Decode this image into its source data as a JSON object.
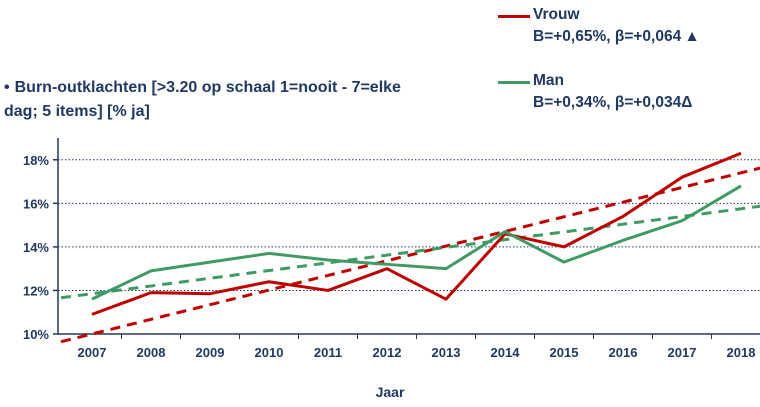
{
  "chart_data": {
    "type": "line",
    "title": "Burn-outklachten [>3.20 op schaal 1=nooit - 7=elke dag; 5 items] [% ja]",
    "title_bullet": "•",
    "xlabel": "Jaar",
    "ylabel": "",
    "categories": [
      "2007",
      "2008",
      "2009",
      "2010",
      "2011",
      "2012",
      "2013",
      "2014",
      "2015",
      "2016",
      "2017",
      "2018"
    ],
    "ylim": [
      10,
      19
    ],
    "yticks": [
      10,
      12,
      14,
      16,
      18
    ],
    "ytick_labels": [
      "10%",
      "12%",
      "14%",
      "16%",
      "18%"
    ],
    "grid": "horizontal-dotted",
    "legend_position": "top-right",
    "series": [
      {
        "name": "Vrouw",
        "stats": "B=+0,65%, β=+0,064",
        "significance_marker": "▲",
        "color": "#c00000",
        "values": [
          10.9,
          11.9,
          11.85,
          12.4,
          12.0,
          13.0,
          11.6,
          14.6,
          14.0,
          15.4,
          17.2,
          18.3
        ],
        "trend": {
          "start": 10.0,
          "end": 17.4
        }
      },
      {
        "name": "Man",
        "stats": "B=+0,34%, β=+0,034",
        "significance_marker": "Δ",
        "color": "#3f9a63",
        "values": [
          11.6,
          12.9,
          13.3,
          13.7,
          13.4,
          13.2,
          13.0,
          14.7,
          13.3,
          14.3,
          15.2,
          16.8
        ],
        "trend": {
          "start": 11.85,
          "end": 15.75
        }
      }
    ]
  }
}
